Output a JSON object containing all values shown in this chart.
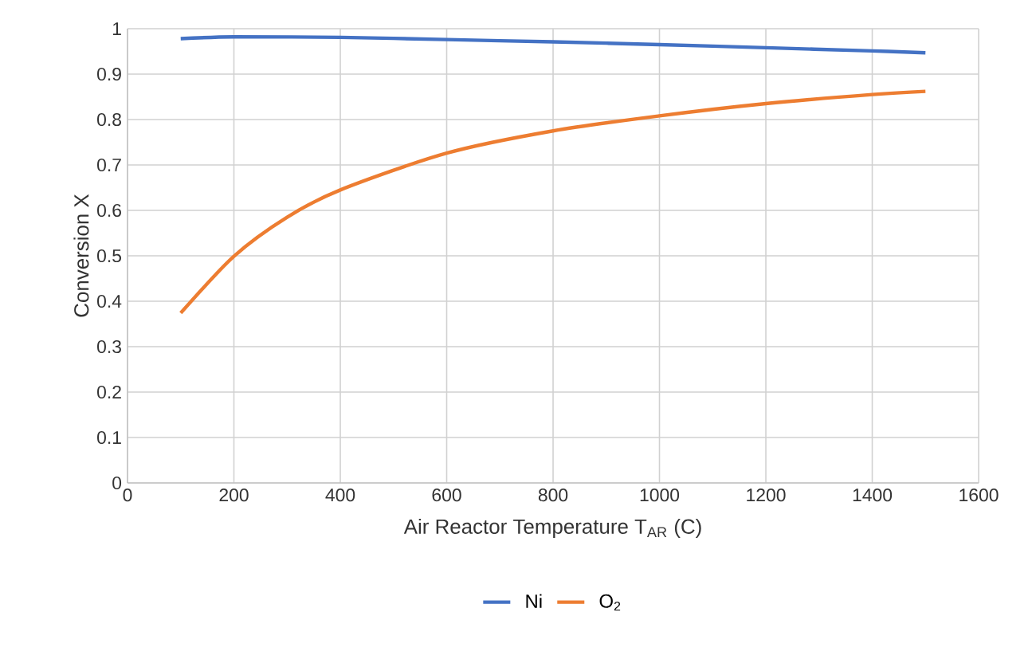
{
  "chart_data": {
    "type": "line",
    "xlabel": "Air Reactor Temperature T$_{AR}$ (C)",
    "ylabel": "Conversion X",
    "series": [
      {
        "name": "Ni",
        "color": "#4472c4",
        "x": [
          100,
          200,
          400,
          600,
          800,
          1000,
          1200,
          1400,
          1500
        ],
        "values": [
          0.978,
          0.982,
          0.981,
          0.976,
          0.971,
          0.965,
          0.958,
          0.951,
          0.947
        ]
      },
      {
        "name": "O$_{2}$",
        "color": "#ed7d31",
        "x": [
          100,
          200,
          300,
          400,
          600,
          800,
          1000,
          1200,
          1400,
          1500
        ],
        "values": [
          0.374,
          0.499,
          0.585,
          0.645,
          0.726,
          0.775,
          0.808,
          0.835,
          0.855,
          0.862
        ]
      }
    ],
    "xlim": [
      0,
      1600
    ],
    "xticks": [
      0,
      200,
      400,
      600,
      800,
      1000,
      1200,
      1400,
      1600
    ],
    "ylim": [
      0,
      1
    ],
    "yticks": [
      0,
      0.1,
      0.2,
      0.3,
      0.4,
      0.5,
      0.6,
      0.7,
      0.8,
      0.9,
      1
    ],
    "grid": true,
    "legend": "bottom",
    "marker": "none",
    "line_style": "solid"
  }
}
